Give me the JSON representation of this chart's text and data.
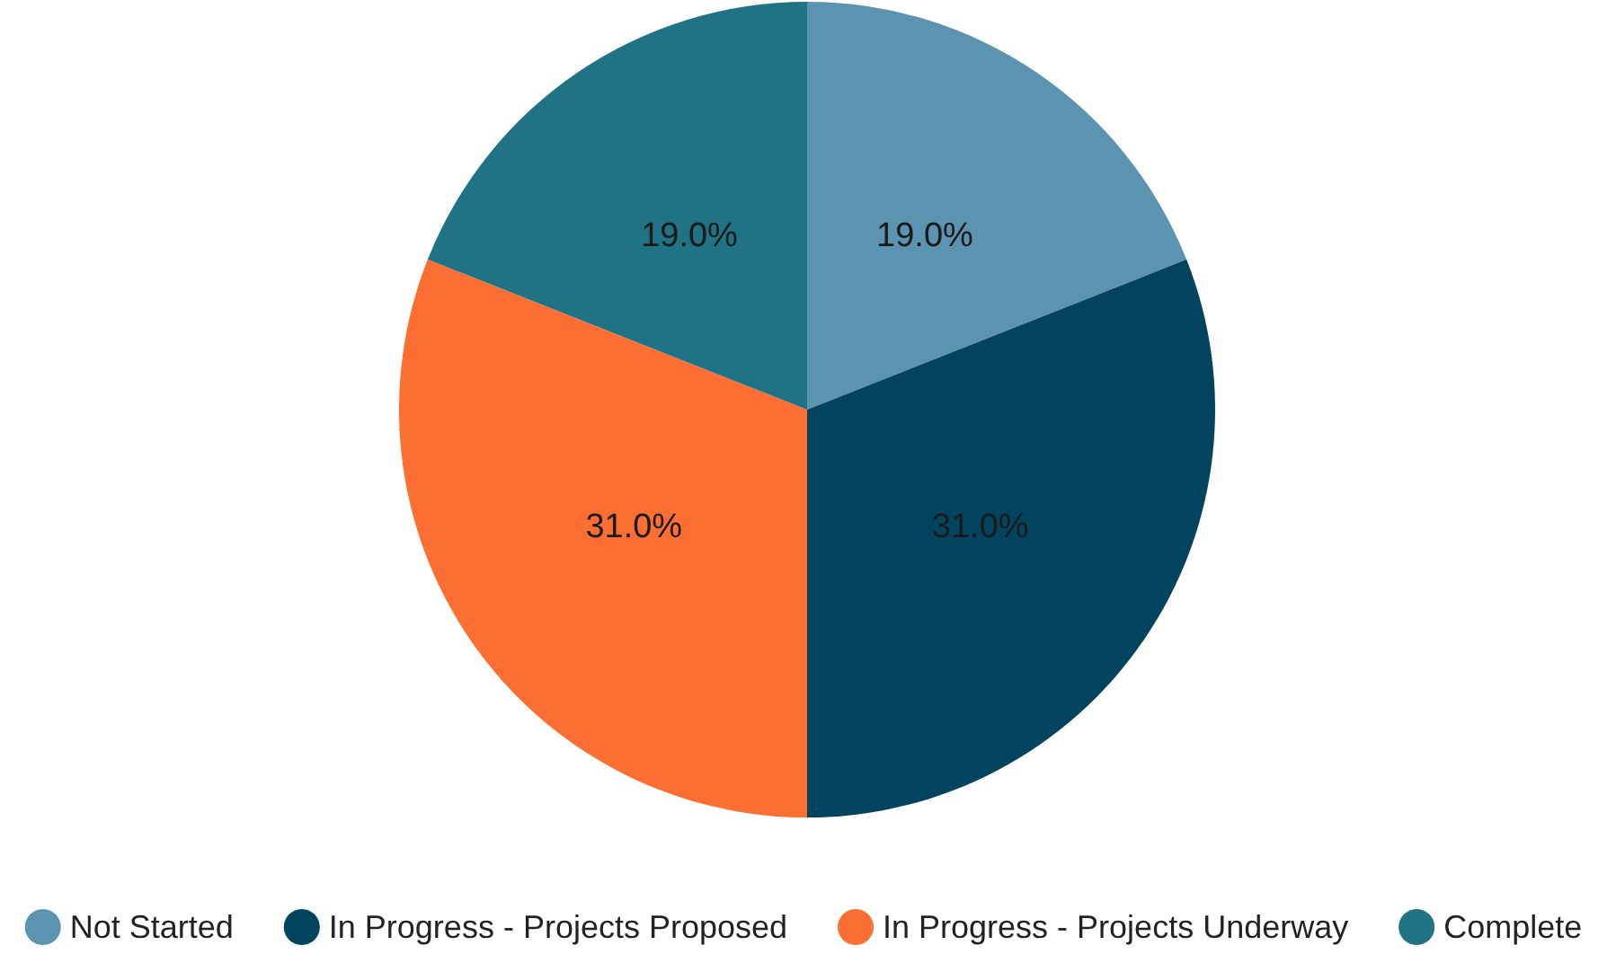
{
  "chart_data": {
    "type": "pie",
    "categories": [
      "Not Started",
      "In Progress - Projects Proposed",
      "In Progress - Projects Underway",
      "Complete"
    ],
    "values": [
      19,
      31,
      31,
      19
    ],
    "colors": [
      "#5b93b1",
      "#02445f",
      "#fd6e33",
      "#1f7384"
    ],
    "value_labels": [
      "19.0%",
      "31.0%",
      "31.0%",
      "19.0%"
    ],
    "legend": "bottom"
  }
}
